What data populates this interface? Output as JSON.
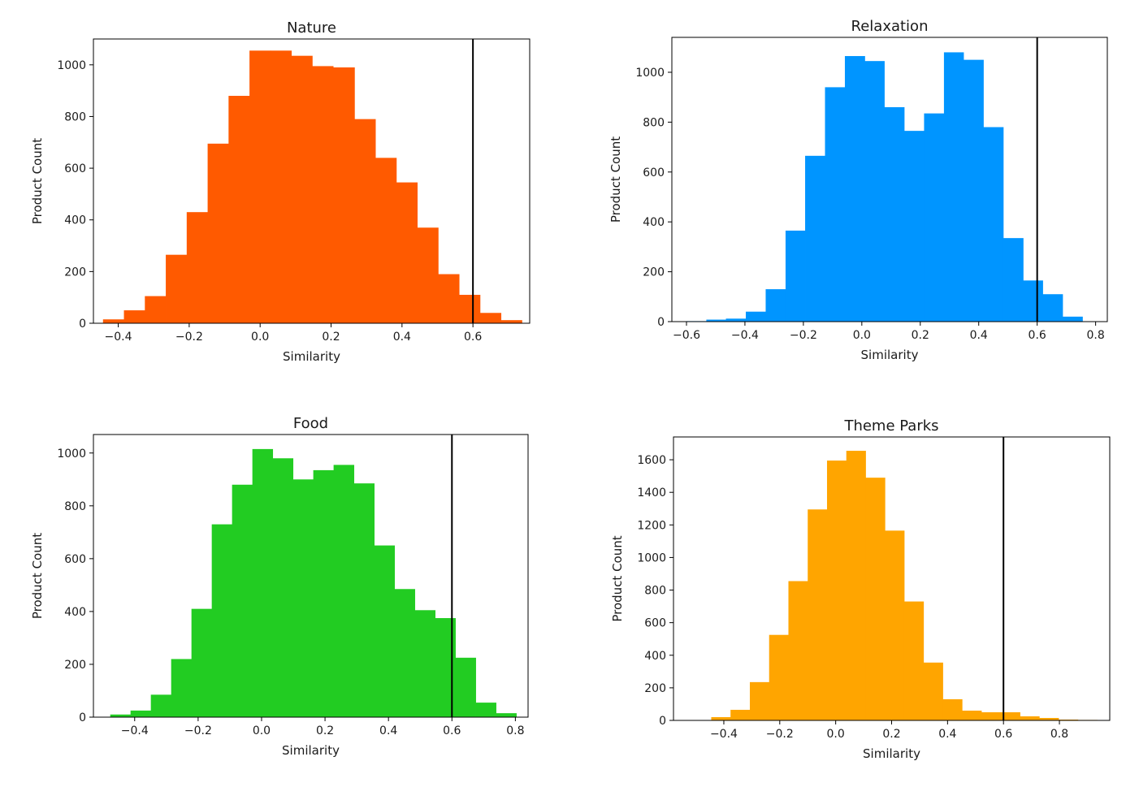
{
  "chart_data": [
    {
      "type": "bar",
      "title": "Nature",
      "xlabel": "Similarity",
      "ylabel": "Product Count",
      "color": "#ff5a00",
      "xlim": [
        -0.47,
        0.76
      ],
      "ylim": [
        0,
        1100
      ],
      "xticks": [
        -0.4,
        -0.2,
        0.0,
        0.2,
        0.4,
        0.6
      ],
      "xtick_labels": [
        "−0.4",
        "−0.2",
        "0.0",
        "0.2",
        "0.4",
        "0.6"
      ],
      "yticks": [
        0,
        200,
        400,
        600,
        800,
        1000
      ],
      "ytick_labels": [
        "0",
        "200",
        "400",
        "600",
        "800",
        "1000"
      ],
      "bin_edges": [
        -0.443,
        -0.384,
        -0.325,
        -0.266,
        -0.207,
        -0.148,
        -0.089,
        -0.03,
        0.029,
        0.088,
        0.147,
        0.206,
        0.266,
        0.325,
        0.384,
        0.443,
        0.502,
        0.561,
        0.62,
        0.679,
        0.738
      ],
      "values": [
        15,
        50,
        105,
        265,
        430,
        695,
        880,
        1055,
        1055,
        1035,
        995,
        990,
        790,
        640,
        545,
        370,
        190,
        110,
        40,
        12
      ],
      "vline": 0.6,
      "grid": false
    },
    {
      "type": "bar",
      "title": "Relaxation",
      "xlabel": "Similarity",
      "ylabel": "Product Count",
      "color": "#0095ff",
      "xlim": [
        -0.65,
        0.84
      ],
      "ylim": [
        0,
        1140
      ],
      "xticks": [
        -0.6,
        -0.4,
        -0.2,
        0.0,
        0.2,
        0.4,
        0.6,
        0.8
      ],
      "xtick_labels": [
        "−0.6",
        "−0.4",
        "−0.2",
        "0.0",
        "0.2",
        "0.4",
        "0.6",
        "0.8"
      ],
      "yticks": [
        0,
        200,
        400,
        600,
        800,
        1000
      ],
      "ytick_labels": [
        "0",
        "200",
        "400",
        "600",
        "800",
        "1000"
      ],
      "bin_edges": [
        -0.6,
        -0.532,
        -0.465,
        -0.397,
        -0.329,
        -0.261,
        -0.194,
        -0.126,
        -0.058,
        0.01,
        0.077,
        0.145,
        0.213,
        0.281,
        0.348,
        0.416,
        0.484,
        0.552,
        0.619,
        0.687,
        0.755
      ],
      "values": [
        2,
        8,
        12,
        40,
        130,
        365,
        665,
        940,
        1065,
        1045,
        860,
        765,
        835,
        1080,
        1050,
        780,
        335,
        165,
        110,
        20
      ],
      "vline": 0.6,
      "grid": false
    },
    {
      "type": "bar",
      "title": "Food",
      "xlabel": "Similarity",
      "ylabel": "Product Count",
      "color": "#22cc22",
      "xlim": [
        -0.53,
        0.84
      ],
      "ylim": [
        0,
        1070
      ],
      "xticks": [
        -0.4,
        -0.2,
        0.0,
        0.2,
        0.4,
        0.6,
        0.8
      ],
      "xtick_labels": [
        "−0.4",
        "−0.2",
        "0.0",
        "0.2",
        "0.4",
        "0.6",
        "0.8"
      ],
      "yticks": [
        0,
        200,
        400,
        600,
        800,
        1000
      ],
      "ytick_labels": [
        "0",
        "200",
        "400",
        "600",
        "800",
        "1000"
      ],
      "bin_edges": [
        -0.477,
        -0.413,
        -0.349,
        -0.285,
        -0.221,
        -0.157,
        -0.093,
        -0.029,
        0.035,
        0.099,
        0.163,
        0.227,
        0.291,
        0.355,
        0.419,
        0.483,
        0.547,
        0.611,
        0.675,
        0.739,
        0.803
      ],
      "values": [
        10,
        25,
        85,
        220,
        410,
        730,
        880,
        1015,
        980,
        900,
        935,
        955,
        885,
        650,
        485,
        405,
        375,
        225,
        55,
        15
      ],
      "vline": 0.6,
      "grid": false
    },
    {
      "type": "bar",
      "title": "Theme Parks",
      "xlabel": "Similarity",
      "ylabel": "Product Count",
      "color": "#ffa500",
      "xlim": [
        -0.58,
        0.98
      ],
      "ylim": [
        0,
        1740
      ],
      "xticks": [
        -0.4,
        -0.2,
        0.0,
        0.2,
        0.4,
        0.6,
        0.8
      ],
      "xtick_labels": [
        "−0.4",
        "−0.2",
        "0.0",
        "0.2",
        "0.4",
        "0.6",
        "0.8"
      ],
      "yticks": [
        0,
        200,
        400,
        600,
        800,
        1000,
        1200,
        1400,
        1600
      ],
      "ytick_labels": [
        "0",
        "200",
        "400",
        "600",
        "800",
        "1000",
        "1200",
        "1400",
        "1600"
      ],
      "bin_edges": [
        -0.445,
        -0.376,
        -0.307,
        -0.238,
        -0.169,
        -0.1,
        -0.031,
        0.038,
        0.107,
        0.176,
        0.245,
        0.314,
        0.383,
        0.452,
        0.521,
        0.59,
        0.659,
        0.728,
        0.797,
        0.866,
        0.935
      ],
      "values": [
        20,
        65,
        235,
        525,
        855,
        1295,
        1595,
        1655,
        1490,
        1165,
        730,
        355,
        130,
        60,
        50,
        50,
        25,
        15,
        5,
        3
      ],
      "vline": 0.6,
      "grid": false
    }
  ]
}
